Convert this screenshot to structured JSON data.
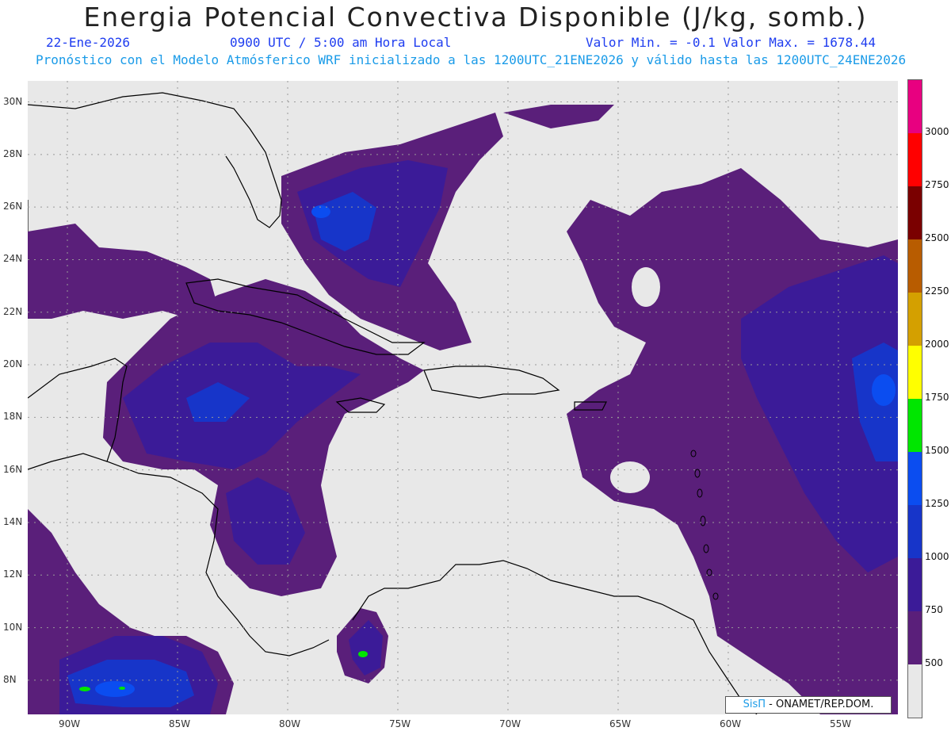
{
  "header": {
    "title": "Energia Potencial Convectiva Disponible (J/kg, somb.)",
    "date": "22-Ene-2026",
    "time": "0900 UTC / 5:00 am Hora Local",
    "range": "Valor Min. = -0.1  Valor Max. = 1678.44",
    "model": "Pronóstico con el Modelo Atmósferico WRF inicializado a las 1200UTC_21ENE2026 y válido hasta las  1200UTC_24ENE2026"
  },
  "map": {
    "lon_range": [
      -91.8,
      -52.3
    ],
    "lat_range": [
      6.7,
      30.8
    ],
    "lon_ticks": [
      "90W",
      "85W",
      "80W",
      "75W",
      "70W",
      "65W",
      "60W",
      "55W"
    ],
    "lat_ticks": [
      "30N",
      "28N",
      "26N",
      "24N",
      "22N",
      "20N",
      "18N",
      "16N",
      "14N",
      "12N",
      "10N",
      "8N"
    ],
    "colors": {
      "background": "#e8e8e8",
      "l500": "#5a1f7a",
      "l750": "#3b1b98",
      "l1000": "#1735c9",
      "l1250": "#0b4df0",
      "l1500": "#00e600"
    }
  },
  "legend": {
    "labels": [
      "500",
      "750",
      "1000",
      "1250",
      "1500",
      "1750",
      "2000",
      "2250",
      "2500",
      "2750",
      "3000"
    ],
    "colors": [
      "#e8e8e8",
      "#5a1f7a",
      "#3b1b98",
      "#1735c9",
      "#0b4df0",
      "#00e600",
      "#ffff00",
      "#d4a000",
      "#b85c00",
      "#7a0000",
      "#ff0000",
      "#e80080"
    ]
  },
  "credit": {
    "sis": "SisΠ",
    "org": " - ONAMET/REP.DOM."
  }
}
